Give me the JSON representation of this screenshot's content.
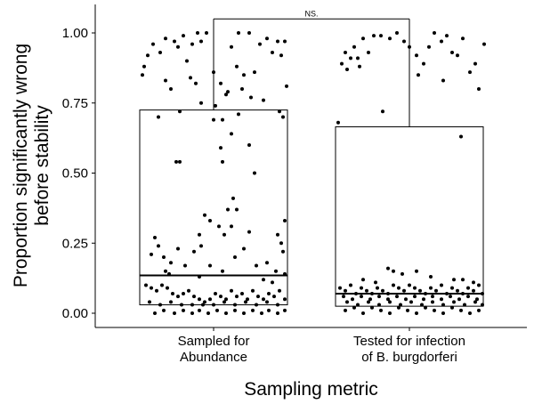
{
  "chart_data": {
    "type": "box-jitter",
    "title": "",
    "xlabel": "Sampling metric",
    "ylabel_lines": [
      "Proportion significantly wrong",
      "before stability"
    ],
    "ylim": [
      -0.055,
      1.1
    ],
    "yticks": [
      0,
      0.25,
      0.5,
      0.75,
      1.0
    ],
    "ytick_labels": [
      "0.00",
      "0.25",
      "0.50",
      "0.75",
      "1.00"
    ],
    "grid": false,
    "categories": [
      {
        "lines": [
          "Sampled for",
          "Abundance"
        ]
      },
      {
        "lines": [
          "Tested for infection",
          "of B. burgdorferi"
        ]
      }
    ],
    "boxes": [
      {
        "q1": 0.03,
        "median": 0.135,
        "q3": 0.725
      },
      {
        "q1": 0.025,
        "median": 0.07,
        "q3": 0.665
      }
    ],
    "significance": {
      "label": "NS.",
      "y": 1.05,
      "drop_left": 0.725,
      "drop_right": 0.665
    },
    "points": [
      [
        [
          -0.4,
          0.85
        ],
        [
          -0.39,
          0.88
        ],
        [
          -0.37,
          0.92
        ],
        [
          -0.34,
          0.96
        ],
        [
          -0.3,
          0.93
        ],
        [
          -0.27,
          0.98
        ],
        [
          -0.22,
          0.97
        ],
        [
          -0.2,
          0.95
        ],
        [
          -0.17,
          0.99
        ],
        [
          -0.15,
          0.9
        ],
        [
          -0.12,
          0.96
        ],
        [
          -0.09,
          1.0
        ],
        [
          -0.07,
          0.97
        ],
        [
          -0.04,
          1.0
        ],
        [
          0.0,
          0.86
        ],
        [
          0.04,
          0.82
        ],
        [
          0.07,
          0.78
        ],
        [
          0.1,
          0.95
        ],
        [
          0.13,
          0.88
        ],
        [
          0.14,
          1.0
        ],
        [
          0.17,
          0.85
        ],
        [
          0.2,
          1.0
        ],
        [
          0.23,
          0.86
        ],
        [
          0.26,
          0.96
        ],
        [
          0.3,
          0.98
        ],
        [
          0.33,
          0.93
        ],
        [
          0.36,
          0.97
        ],
        [
          0.38,
          0.92
        ],
        [
          0.4,
          0.97
        ],
        [
          0.41,
          0.81
        ],
        [
          -0.27,
          0.83
        ],
        [
          -0.24,
          0.8
        ],
        [
          -0.13,
          0.84
        ],
        [
          -0.1,
          0.82
        ],
        [
          -0.07,
          0.75
        ],
        [
          0.01,
          0.74
        ],
        [
          0.08,
          0.79
        ],
        [
          0.16,
          0.8
        ],
        [
          0.21,
          0.77
        ],
        [
          0.28,
          0.76
        ],
        [
          -0.31,
          0.7
        ],
        [
          -0.19,
          0.72
        ],
        [
          0.0,
          0.69
        ],
        [
          0.05,
          0.69
        ],
        [
          0.14,
          0.71
        ],
        [
          0.2,
          0.6
        ],
        [
          0.37,
          0.72
        ],
        [
          0.39,
          0.7
        ],
        [
          -0.21,
          0.54
        ],
        [
          -0.19,
          0.54
        ],
        [
          0.05,
          0.54
        ],
        [
          0.1,
          0.64
        ],
        [
          0.23,
          0.5
        ],
        [
          0.04,
          0.59
        ],
        [
          0.11,
          0.41
        ],
        [
          0.08,
          0.37
        ],
        [
          0.13,
          0.37
        ],
        [
          -0.05,
          0.35
        ],
        [
          -0.02,
          0.33
        ],
        [
          0.03,
          0.31
        ],
        [
          -0.08,
          0.28
        ],
        [
          0.06,
          0.28
        ],
        [
          0.1,
          0.31
        ],
        [
          0.2,
          0.29
        ],
        [
          0.4,
          0.33
        ],
        [
          0.36,
          0.28
        ],
        [
          0.39,
          0.22
        ],
        [
          0.38,
          0.25
        ],
        [
          -0.35,
          0.21
        ],
        [
          -0.33,
          0.27
        ],
        [
          -0.31,
          0.24
        ],
        [
          -0.28,
          0.2
        ],
        [
          -0.24,
          0.18
        ],
        [
          -0.2,
          0.23
        ],
        [
          -0.16,
          0.17
        ],
        [
          -0.11,
          0.22
        ],
        [
          -0.07,
          0.24
        ],
        [
          -0.02,
          0.17
        ],
        [
          0.05,
          0.15
        ],
        [
          0.12,
          0.2
        ],
        [
          0.17,
          0.23
        ],
        [
          0.24,
          0.17
        ],
        [
          0.3,
          0.18
        ],
        [
          0.35,
          0.15
        ],
        [
          0.4,
          0.14
        ],
        [
          -0.27,
          0.15
        ],
        [
          -0.25,
          0.14
        ],
        [
          -0.08,
          0.13
        ],
        [
          0.28,
          0.12
        ],
        [
          0.33,
          0.11
        ],
        [
          -0.38,
          0.1
        ],
        [
          -0.35,
          0.09
        ],
        [
          -0.32,
          0.08
        ],
        [
          -0.29,
          0.1
        ],
        [
          -0.26,
          0.09
        ],
        [
          -0.23,
          0.07
        ],
        [
          -0.2,
          0.06
        ],
        [
          -0.17,
          0.07
        ],
        [
          -0.14,
          0.08
        ],
        [
          -0.11,
          0.06
        ],
        [
          -0.08,
          0.05
        ],
        [
          -0.05,
          0.04
        ],
        [
          -0.02,
          0.05
        ],
        [
          0.01,
          0.07
        ],
        [
          0.04,
          0.06
        ],
        [
          0.07,
          0.05
        ],
        [
          0.1,
          0.08
        ],
        [
          0.13,
          0.06
        ],
        [
          0.16,
          0.07
        ],
        [
          0.19,
          0.05
        ],
        [
          0.22,
          0.08
        ],
        [
          0.25,
          0.06
        ],
        [
          0.28,
          0.05
        ],
        [
          0.31,
          0.07
        ],
        [
          0.34,
          0.06
        ],
        [
          0.37,
          0.08
        ],
        [
          0.4,
          0.05
        ],
        [
          -0.36,
          0.04
        ],
        [
          -0.3,
          0.03
        ],
        [
          -0.24,
          0.04
        ],
        [
          -0.18,
          0.03
        ],
        [
          -0.12,
          0.03
        ],
        [
          -0.06,
          0.03
        ],
        [
          0.0,
          0.03
        ],
        [
          0.06,
          0.04
        ],
        [
          0.12,
          0.03
        ],
        [
          0.18,
          0.04
        ],
        [
          0.24,
          0.03
        ],
        [
          0.3,
          0.04
        ],
        [
          0.36,
          0.03
        ],
        [
          -0.33,
          0.0
        ],
        [
          -0.28,
          0.01
        ],
        [
          -0.22,
          0.0
        ],
        [
          -0.17,
          0.01
        ],
        [
          -0.12,
          0.0
        ],
        [
          -0.08,
          0.01
        ],
        [
          -0.03,
          0.0
        ],
        [
          0.02,
          0.01
        ],
        [
          0.07,
          0.0
        ],
        [
          0.12,
          0.01
        ],
        [
          0.17,
          0.0
        ],
        [
          0.22,
          0.01
        ],
        [
          0.27,
          0.0
        ],
        [
          0.31,
          0.01
        ],
        [
          0.36,
          0.0
        ],
        [
          0.4,
          0.01
        ]
      ],
      [
        [
          -0.38,
          0.89
        ],
        [
          -0.36,
          0.93
        ],
        [
          -0.33,
          0.91
        ],
        [
          -0.31,
          0.95
        ],
        [
          -0.29,
          0.91
        ],
        [
          -0.26,
          0.98
        ],
        [
          -0.23,
          0.93
        ],
        [
          -0.2,
          0.99
        ],
        [
          -0.16,
          0.99
        ],
        [
          -0.11,
          0.98
        ],
        [
          -0.07,
          1.0
        ],
        [
          -0.03,
          0.97
        ],
        [
          0.0,
          0.95
        ],
        [
          0.04,
          0.92
        ],
        [
          0.08,
          0.89
        ],
        [
          0.11,
          0.95
        ],
        [
          0.14,
          1.0
        ],
        [
          0.18,
          0.97
        ],
        [
          0.21,
          0.99
        ],
        [
          0.24,
          0.93
        ],
        [
          0.27,
          0.92
        ],
        [
          0.3,
          0.98
        ],
        [
          0.34,
          0.86
        ],
        [
          0.37,
          0.89
        ],
        [
          0.39,
          0.8
        ],
        [
          0.42,
          0.96
        ],
        [
          -0.35,
          0.87
        ],
        [
          -0.28,
          0.88
        ],
        [
          0.05,
          0.85
        ],
        [
          0.19,
          0.83
        ],
        [
          -0.4,
          0.68
        ],
        [
          -0.15,
          0.72
        ],
        [
          0.29,
          0.63
        ],
        [
          -0.12,
          0.16
        ],
        [
          -0.09,
          0.15
        ],
        [
          -0.04,
          0.14
        ],
        [
          0.04,
          0.15
        ],
        [
          0.12,
          0.13
        ],
        [
          0.25,
          0.12
        ],
        [
          0.36,
          0.11
        ],
        [
          -0.26,
          0.12
        ],
        [
          -0.19,
          0.11
        ],
        [
          0.3,
          0.12
        ],
        [
          -0.39,
          0.09
        ],
        [
          -0.36,
          0.08
        ],
        [
          -0.33,
          0.1
        ],
        [
          -0.3,
          0.07
        ],
        [
          -0.27,
          0.09
        ],
        [
          -0.24,
          0.08
        ],
        [
          -0.21,
          0.07
        ],
        [
          -0.18,
          0.09
        ],
        [
          -0.15,
          0.08
        ],
        [
          -0.12,
          0.07
        ],
        [
          -0.09,
          0.1
        ],
        [
          -0.06,
          0.09
        ],
        [
          -0.03,
          0.08
        ],
        [
          0.0,
          0.1
        ],
        [
          0.03,
          0.09
        ],
        [
          0.06,
          0.08
        ],
        [
          0.09,
          0.07
        ],
        [
          0.12,
          0.09
        ],
        [
          0.15,
          0.08
        ],
        [
          0.18,
          0.1
        ],
        [
          0.21,
          0.07
        ],
        [
          0.24,
          0.09
        ],
        [
          0.27,
          0.08
        ],
        [
          0.3,
          0.07
        ],
        [
          0.33,
          0.09
        ],
        [
          0.36,
          0.08
        ],
        [
          0.39,
          0.1
        ],
        [
          0.41,
          0.07
        ],
        [
          -0.37,
          0.06
        ],
        [
          -0.32,
          0.05
        ],
        [
          -0.27,
          0.06
        ],
        [
          -0.22,
          0.05
        ],
        [
          -0.17,
          0.06
        ],
        [
          -0.12,
          0.05
        ],
        [
          -0.07,
          0.06
        ],
        [
          -0.02,
          0.05
        ],
        [
          0.03,
          0.06
        ],
        [
          0.08,
          0.05
        ],
        [
          0.13,
          0.06
        ],
        [
          0.18,
          0.05
        ],
        [
          0.23,
          0.06
        ],
        [
          0.28,
          0.05
        ],
        [
          0.33,
          0.06
        ],
        [
          0.38,
          0.05
        ],
        [
          -0.35,
          0.04
        ],
        [
          -0.29,
          0.03
        ],
        [
          -0.23,
          0.04
        ],
        [
          -0.17,
          0.03
        ],
        [
          -0.11,
          0.04
        ],
        [
          -0.05,
          0.03
        ],
        [
          0.01,
          0.04
        ],
        [
          0.07,
          0.03
        ],
        [
          0.13,
          0.04
        ],
        [
          0.19,
          0.03
        ],
        [
          0.25,
          0.04
        ],
        [
          0.31,
          0.03
        ],
        [
          0.37,
          0.04
        ],
        [
          0.41,
          0.03
        ],
        [
          -0.36,
          0.01
        ],
        [
          -0.31,
          0.02
        ],
        [
          -0.26,
          0.0
        ],
        [
          -0.21,
          0.02
        ],
        [
          -0.16,
          0.01
        ],
        [
          -0.11,
          0.0
        ],
        [
          -0.06,
          0.02
        ],
        [
          -0.01,
          0.01
        ],
        [
          0.04,
          0.0
        ],
        [
          0.09,
          0.02
        ],
        [
          0.14,
          0.01
        ],
        [
          0.19,
          0.0
        ],
        [
          0.24,
          0.02
        ],
        [
          0.29,
          0.01
        ],
        [
          0.34,
          0.0
        ],
        [
          0.39,
          0.01
        ]
      ]
    ]
  }
}
